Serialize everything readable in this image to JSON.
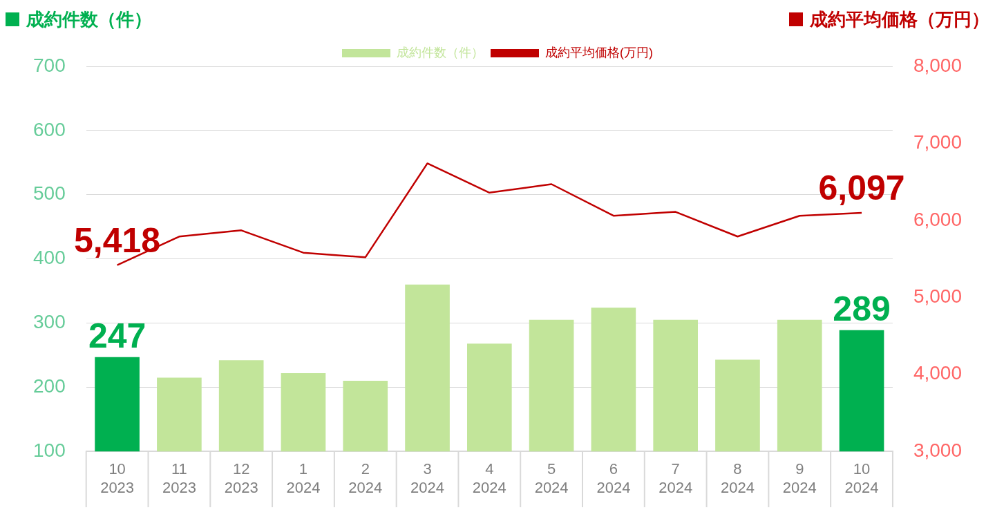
{
  "chart_data": {
    "type": "bar",
    "ylabel": "成約件数（件）",
    "y2label": "成約平均価格（万円）",
    "categories": [
      "10\n2023",
      "11\n2023",
      "12\n2023",
      "1\n2024",
      "2\n2024",
      "3\n2024",
      "4\n2024",
      "5\n2024",
      "6\n2024",
      "7\n2024",
      "8\n2024",
      "9\n2024",
      "10\n2024"
    ],
    "series": [
      {
        "name": "成約件数（件）",
        "color": "#c2e59a",
        "colors": [
          "#00b050",
          "#c2e59a",
          "#c2e59a",
          "#c2e59a",
          "#c2e59a",
          "#c2e59a",
          "#c2e59a",
          "#c2e59a",
          "#c2e59a",
          "#c2e59a",
          "#c2e59a",
          "#c2e59a",
          "#00b050"
        ],
        "values": [
          247,
          215,
          242,
          222,
          210,
          360,
          268,
          305,
          324,
          305,
          243,
          305,
          289
        ],
        "value_labels": [
          "247",
          null,
          null,
          null,
          null,
          null,
          null,
          null,
          null,
          null,
          null,
          null,
          "289"
        ]
      },
      {
        "name": "成約平均価格(万円)",
        "type": "line",
        "axis": "y2",
        "color": "#c00000",
        "values": [
          5418,
          5790,
          5870,
          5580,
          5520,
          6740,
          6360,
          6470,
          6060,
          6110,
          5790,
          6060,
          6097
        ],
        "value_labels": [
          "5,418",
          null,
          null,
          null,
          null,
          null,
          null,
          null,
          null,
          null,
          null,
          null,
          "6,097"
        ]
      }
    ],
    "ylim": [
      100,
      700
    ],
    "yticks": [
      100,
      200,
      300,
      400,
      500,
      600,
      700
    ],
    "y2lim": [
      3000,
      8000
    ],
    "y2ticks": [
      {
        "value": 3000,
        "label": "3,000"
      },
      {
        "value": 4000,
        "label": "4,000"
      },
      {
        "value": 5000,
        "label": "5,000"
      },
      {
        "value": 6000,
        "label": "6,000"
      },
      {
        "value": 7000,
        "label": "7,000"
      },
      {
        "value": 8000,
        "label": "8,000"
      }
    ],
    "grid": "y",
    "legend": "top",
    "marker": "none"
  }
}
